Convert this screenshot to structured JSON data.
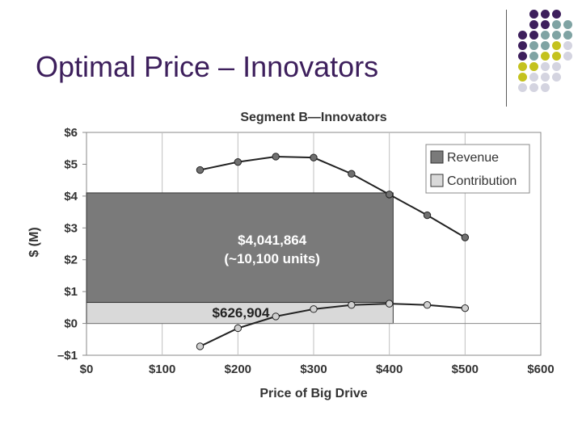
{
  "slide": {
    "title": "Optimal Price – Innovators"
  },
  "palette": {
    "title_color": "#3d1f5c",
    "dots": [
      "#3d1f5c",
      "#7fa3a3",
      "#c4c21e",
      "#d4d4e0"
    ]
  },
  "chart_data": {
    "type": "line",
    "title": "Segment B—Innovators",
    "xlabel": "Price of Big Drive",
    "ylabel": "$ (M)",
    "xlim": [
      0,
      600
    ],
    "ylim": [
      -1,
      6
    ],
    "x_ticks": [
      0,
      100,
      200,
      300,
      400,
      500,
      600
    ],
    "x_tick_labels": [
      "$0",
      "$100",
      "$200",
      "$300",
      "$400",
      "$500",
      "$600"
    ],
    "y_ticks": [
      -1,
      0,
      1,
      2,
      3,
      4,
      5,
      6
    ],
    "y_tick_labels": [
      "–$1",
      "$0",
      "$1",
      "$2",
      "$3",
      "$4",
      "$5",
      "$6"
    ],
    "legend": [
      {
        "label": "Revenue",
        "color": "#7a7a7a"
      },
      {
        "label": "Contribution",
        "color": "#d9d9d9"
      }
    ],
    "series": [
      {
        "name": "Revenue",
        "x": [
          150,
          200,
          250,
          300,
          350,
          400,
          450,
          500
        ],
        "values": [
          4.82,
          5.07,
          5.24,
          5.21,
          4.7,
          4.05,
          3.4,
          2.7
        ],
        "marker_color": "#707070"
      },
      {
        "name": "Contribution",
        "x": [
          150,
          200,
          250,
          300,
          350,
          400,
          450,
          500
        ],
        "values": [
          -0.72,
          -0.15,
          0.22,
          0.45,
          0.58,
          0.62,
          0.58,
          0.48
        ],
        "marker_color": "#d0d0d0"
      }
    ],
    "optimum": {
      "price": 405,
      "revenue": 4.1,
      "contribution": 0.66
    },
    "annotations": {
      "revenue_value": "$4,041,864",
      "revenue_units": "(~10,100 units)",
      "contribution_value": "$626,904"
    }
  }
}
